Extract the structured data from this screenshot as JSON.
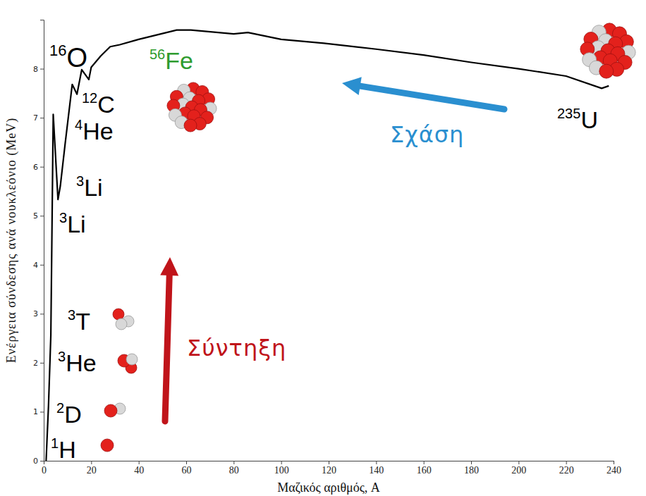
{
  "chart_data": {
    "type": "line",
    "x_label": "Μαζικός αριθμός, A",
    "y_label": "Ενέργεια σύνδεσης ανά νουκλεόνιο (MeV)",
    "x": [
      1,
      2,
      3,
      4,
      6,
      7,
      9,
      12,
      14,
      16,
      19,
      20,
      24,
      28,
      32,
      40,
      56,
      62,
      80,
      86,
      100,
      118,
      120,
      140,
      160,
      180,
      200,
      220,
      235,
      238
    ],
    "values": [
      0,
      1.11,
      2.57,
      7.07,
      5.33,
      5.61,
      6.46,
      7.68,
      7.48,
      7.98,
      7.78,
      8.03,
      8.26,
      8.45,
      8.49,
      8.6,
      8.79,
      8.79,
      8.71,
      8.74,
      8.6,
      8.52,
      8.51,
      8.4,
      8.28,
      8.13,
      8.0,
      7.85,
      7.6,
      7.65
    ],
    "color": "#000000",
    "xlim": [
      0,
      240
    ],
    "xticks": [
      0,
      20,
      40,
      60,
      80,
      100,
      120,
      140,
      160,
      180,
      200,
      220,
      240
    ],
    "ylim": [
      0,
      9
    ],
    "yticks": [
      0,
      1,
      2,
      3,
      4,
      5,
      6,
      7,
      8
    ],
    "grid": false,
    "annotations": [
      {
        "sup": "16",
        "text": "O",
        "color": "#000000"
      },
      {
        "sup": "56",
        "text": "Fe",
        "color": "#2e9b2e"
      },
      {
        "sup": "12",
        "text": "C",
        "color": "#000000"
      },
      {
        "sup": "4",
        "text": "He",
        "color": "#000000"
      },
      {
        "sup": "3",
        "text": "Li",
        "color": "#000000"
      },
      {
        "sup": "3",
        "text": "Li",
        "color": "#000000"
      },
      {
        "sup": "3",
        "text": "T",
        "color": "#000000"
      },
      {
        "sup": "3",
        "text": "He",
        "color": "#000000"
      },
      {
        "sup": "2",
        "text": "D",
        "color": "#000000"
      },
      {
        "sup": "1",
        "text": "H",
        "color": "#000000"
      },
      {
        "sup": "235",
        "text": "U",
        "color": "#000000"
      },
      {
        "text": "Σχάση",
        "color": "#2a8fd0"
      },
      {
        "text": "Σύντηξη",
        "color": "#c0141a"
      }
    ]
  }
}
